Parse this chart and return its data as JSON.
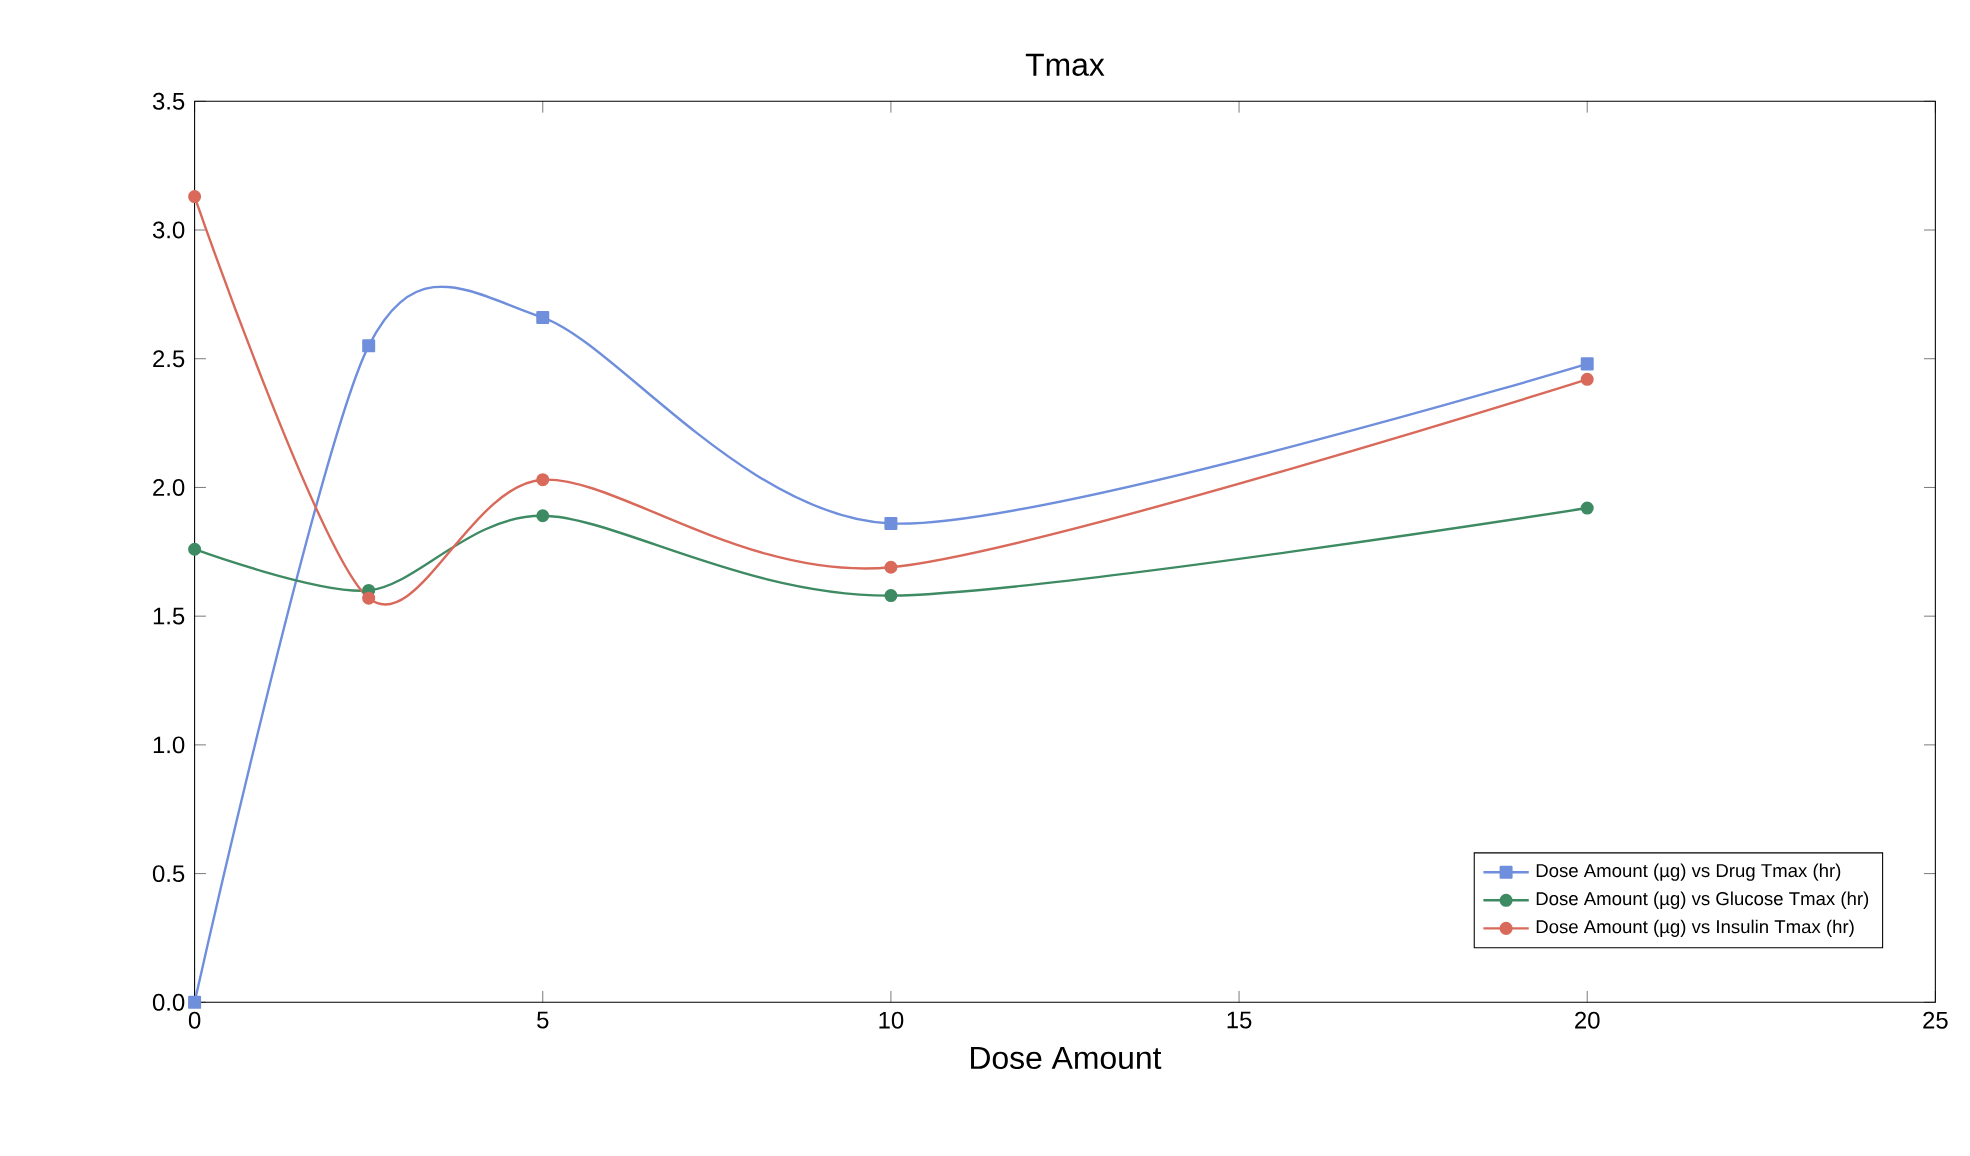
{
  "chart_data": {
    "type": "line",
    "title": "Tmax",
    "xlabel": "Dose Amount",
    "xlim": [
      0,
      25
    ],
    "xticks": [
      0,
      5,
      10,
      15,
      20,
      25
    ],
    "ylim": [
      0,
      3.5
    ],
    "yticks": [
      {
        "value": 0,
        "label": "0.0"
      },
      {
        "value": 0.5,
        "label": "0.5"
      },
      {
        "value": 1,
        "label": "1.0"
      },
      {
        "value": 1.5,
        "label": "1.5"
      },
      {
        "value": 2,
        "label": "2.0"
      },
      {
        "value": 2.5,
        "label": "2.5"
      },
      {
        "value": 3,
        "label": "3.0"
      },
      {
        "value": 3.5,
        "label": "3.5"
      }
    ],
    "x": [
      0,
      2.5,
      5,
      10,
      20
    ],
    "series": [
      {
        "name": "Dose Amount (µg) vs Drug Tmax (hr)",
        "color": "#6f8fdc",
        "marker": "square",
        "values": [
          0,
          2.55,
          2.66,
          1.86,
          2.48
        ]
      },
      {
        "name": "Dose Amount (µg) vs Glucose Tmax (hr)",
        "color": "#3d8a63",
        "marker": "circle",
        "values": [
          1.76,
          1.6,
          1.89,
          1.58,
          1.92
        ]
      },
      {
        "name": "Dose Amount (µg) vs Insulin Tmax (hr)",
        "color": "#d9695a",
        "marker": "circle",
        "values": [
          3.13,
          1.57,
          2.03,
          1.69,
          2.42
        ]
      }
    ],
    "legend": "bottom right",
    "grid": false,
    "line_style": "solid"
  }
}
